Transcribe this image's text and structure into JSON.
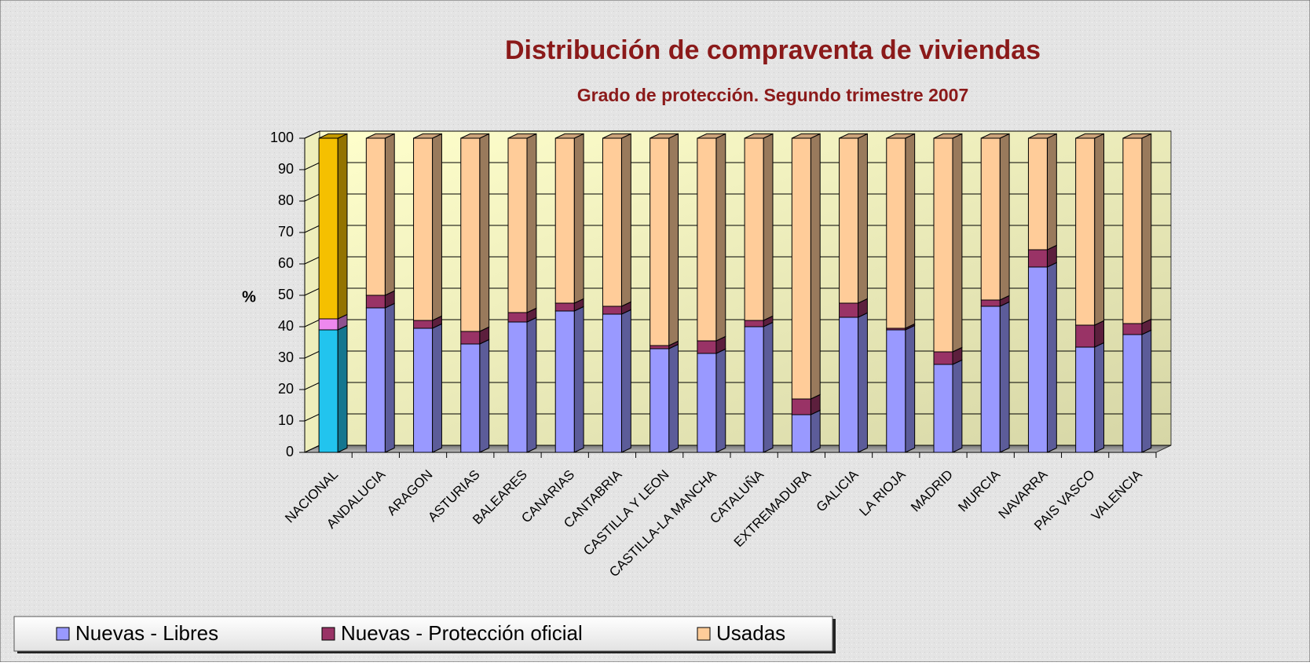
{
  "chart_data": {
    "type": "stacked_bar_3d",
    "title": "Distribución de compraventa de viviendas",
    "subtitle": "Grado de protección. Segundo trimestre 2007",
    "y_label": "%",
    "categories": [
      "NACIONAL",
      "ANDALUCIA",
      "ARAGON",
      "ASTURIAS",
      "BALEARES",
      "CANARIAS",
      "CANTABRIA",
      "CASTILLA Y LEON",
      "CASTILLA-LA MANCHA",
      "CATALUÑA",
      "EXTREMADURA",
      "GALICIA",
      "LA RIOJA",
      "MADRID",
      "MURCIA",
      "NAVARRA",
      "PAIS VASCO",
      "VALENCIA"
    ],
    "series": [
      {
        "name": "Nuevas - Libres",
        "color": "#9999ff",
        "highlight_color": "#22c4ee",
        "values": [
          39,
          46,
          39.5,
          34.5,
          41.5,
          45,
          44,
          33,
          31.5,
          40,
          12,
          43,
          39,
          28,
          46.5,
          59,
          33.5,
          37.5
        ]
      },
      {
        "name": "Nuevas - Protección oficial",
        "color": "#993366",
        "highlight_color": "#ee88ee",
        "values": [
          3.5,
          4,
          2.5,
          4,
          3,
          2.5,
          2.5,
          1,
          4,
          2,
          5,
          4.5,
          0.5,
          4,
          2,
          5.5,
          7,
          3.5
        ]
      },
      {
        "name": "Usadas",
        "color": "#ffcc99",
        "highlight_color": "#f5c000",
        "values": [
          57.5,
          50,
          58,
          61.5,
          55.5,
          52.5,
          53.5,
          66,
          64.5,
          58,
          83,
          52.5,
          60.5,
          68,
          51.5,
          35.5,
          59.5,
          59
        ]
      }
    ],
    "highlight_index": 0,
    "ylim": [
      0,
      100
    ],
    "yticks": [
      0,
      10,
      20,
      30,
      40,
      50,
      60,
      70,
      80,
      90,
      100
    ],
    "grid": true,
    "legend": "bottom-left"
  }
}
